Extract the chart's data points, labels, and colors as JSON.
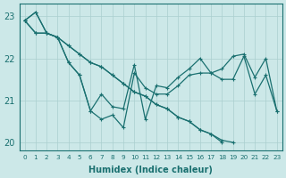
{
  "xlabel": "Humidex (Indice chaleur)",
  "xlim": [
    -0.5,
    23.5
  ],
  "ylim": [
    19.8,
    23.3
  ],
  "yticks": [
    20,
    21,
    22,
    23
  ],
  "xticks": [
    0,
    1,
    2,
    3,
    4,
    5,
    6,
    7,
    8,
    9,
    10,
    11,
    12,
    13,
    14,
    15,
    16,
    17,
    18,
    19,
    20,
    21,
    22,
    23
  ],
  "bg_color": "#cce8e8",
  "grid_color": "#aacfcf",
  "line_color": "#1a7070",
  "line_width": 0.9,
  "marker": "+",
  "marker_size": 3.5,
  "series": [
    [
      22.9,
      23.1,
      22.6,
      22.5,
      22.3,
      22.1,
      21.9,
      21.8,
      21.6,
      21.4,
      21.2,
      21.1,
      20.9,
      20.8,
      20.6,
      20.5,
      20.3,
      20.2,
      20.0,
      null,
      null,
      null,
      null,
      null
    ],
    [
      22.9,
      22.6,
      22.6,
      22.5,
      22.3,
      22.1,
      21.9,
      21.8,
      21.6,
      21.4,
      21.2,
      21.1,
      20.9,
      20.8,
      20.6,
      20.5,
      20.3,
      20.2,
      20.05,
      20.0,
      null,
      null,
      null,
      null
    ],
    [
      22.9,
      23.1,
      22.6,
      22.5,
      21.9,
      21.6,
      20.75,
      21.15,
      20.85,
      20.8,
      21.85,
      20.55,
      21.35,
      21.3,
      21.55,
      21.75,
      22.0,
      21.65,
      21.75,
      22.05,
      22.1,
      21.55,
      22.0,
      20.75
    ],
    [
      22.9,
      22.6,
      22.6,
      22.5,
      21.9,
      21.6,
      20.75,
      20.55,
      20.65,
      20.35,
      21.65,
      21.3,
      21.15,
      21.15,
      21.35,
      21.6,
      21.65,
      21.65,
      21.5,
      21.5,
      22.05,
      21.15,
      21.6,
      20.75
    ]
  ]
}
